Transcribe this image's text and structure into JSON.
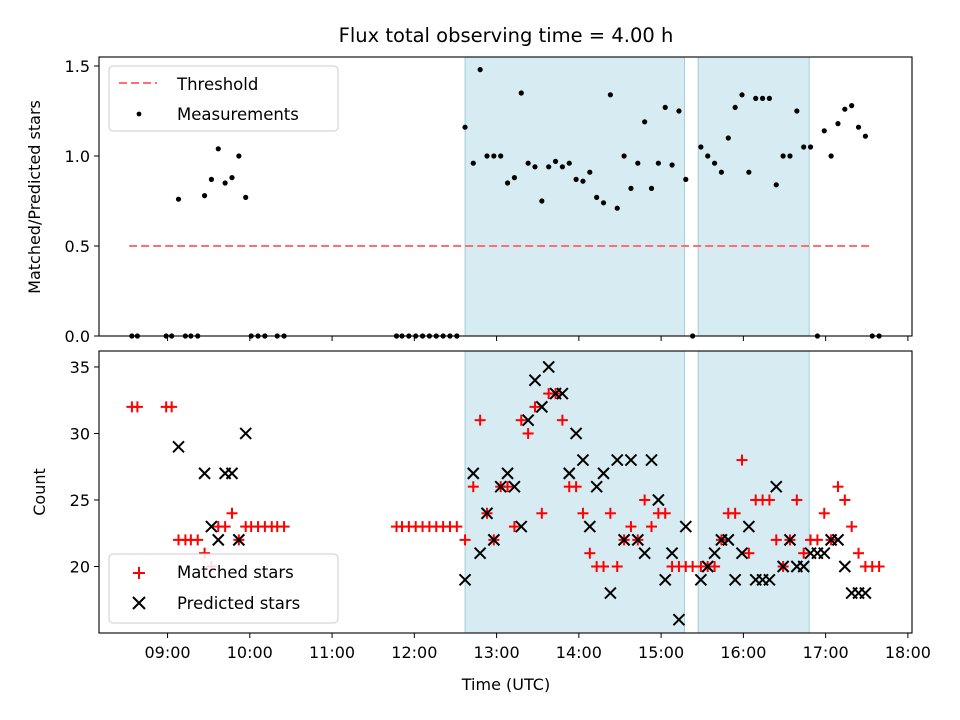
{
  "chart_data": [
    {
      "type": "scatter",
      "title": "Flux total observing time = 4.00 h",
      "ylabel": "Matched/Predicted stars",
      "xlabel": "",
      "xlim": [
        "08:10",
        "18:03"
      ],
      "ylim": [
        0,
        1.55
      ],
      "yticks": [
        "0.0",
        "0.5",
        "1.0",
        "1.5"
      ],
      "legend": {
        "placement": "top-left",
        "entries": [
          "Threshold",
          "Measurements"
        ]
      },
      "threshold": {
        "name": "Threshold",
        "value": 0.5,
        "x_start": "08:32",
        "x_end": "17:32",
        "color": "#ff6f6f"
      },
      "shaded_intervals": [
        [
          "12:37",
          "15:17"
        ],
        [
          "15:27",
          "16:48"
        ]
      ],
      "series": [
        {
          "name": "Measurements",
          "color": "#000000",
          "points": [
            [
              "08:34",
              0
            ],
            [
              "08:38",
              0
            ],
            [
              "08:59",
              0
            ],
            [
              "09:03",
              0
            ],
            [
              "09:13",
              0
            ],
            [
              "09:17",
              0
            ],
            [
              "09:22",
              0
            ],
            [
              "09:08",
              0.76
            ],
            [
              "09:27",
              0.78
            ],
            [
              "09:32",
              0.87
            ],
            [
              "09:37",
              1.04
            ],
            [
              "09:42",
              0.85
            ],
            [
              "09:47",
              0.88
            ],
            [
              "09:52",
              1.0
            ],
            [
              "09:57",
              0.77
            ],
            [
              "10:01",
              0
            ],
            [
              "10:06",
              0
            ],
            [
              "10:11",
              0
            ],
            [
              "10:20",
              0
            ],
            [
              "10:25",
              0
            ],
            [
              "11:47",
              0
            ],
            [
              "11:51",
              0
            ],
            [
              "11:56",
              0
            ],
            [
              "12:01",
              0
            ],
            [
              "12:06",
              0
            ],
            [
              "12:11",
              0
            ],
            [
              "12:16",
              0
            ],
            [
              "12:21",
              0
            ],
            [
              "12:26",
              0
            ],
            [
              "12:31",
              0
            ],
            [
              "12:37",
              1.16
            ],
            [
              "12:43",
              0.96
            ],
            [
              "12:48",
              1.48
            ],
            [
              "12:53",
              1.0
            ],
            [
              "12:58",
              1.0
            ],
            [
              "13:03",
              1.0
            ],
            [
              "13:08",
              0.85
            ],
            [
              "13:13",
              0.88
            ],
            [
              "13:18",
              1.35
            ],
            [
              "13:23",
              0.96
            ],
            [
              "13:28",
              0.94
            ],
            [
              "13:33",
              0.75
            ],
            [
              "13:38",
              0.94
            ],
            [
              "13:43",
              0.97
            ],
            [
              "13:48",
              0.94
            ],
            [
              "13:53",
              0.96
            ],
            [
              "13:58",
              0.87
            ],
            [
              "14:03",
              0.86
            ],
            [
              "14:08",
              0.91
            ],
            [
              "14:13",
              0.77
            ],
            [
              "14:18",
              0.74
            ],
            [
              "14:23",
              1.34
            ],
            [
              "14:28",
              0.71
            ],
            [
              "14:33",
              1.0
            ],
            [
              "14:38",
              0.82
            ],
            [
              "14:43",
              0.96
            ],
            [
              "14:48",
              1.19
            ],
            [
              "14:53",
              0.82
            ],
            [
              "14:58",
              0.96
            ],
            [
              "15:03",
              1.27
            ],
            [
              "15:08",
              0.95
            ],
            [
              "15:13",
              1.25
            ],
            [
              "15:18",
              0.87
            ],
            [
              "15:23",
              0
            ],
            [
              "15:29",
              1.05
            ],
            [
              "15:34",
              1.0
            ],
            [
              "15:39",
              0.96
            ],
            [
              "15:44",
              0.91
            ],
            [
              "15:49",
              1.1
            ],
            [
              "15:54",
              1.27
            ],
            [
              "15:59",
              1.34
            ],
            [
              "16:04",
              0.91
            ],
            [
              "16:09",
              1.32
            ],
            [
              "16:14",
              1.32
            ],
            [
              "16:19",
              1.32
            ],
            [
              "16:24",
              0.84
            ],
            [
              "16:29",
              1.0
            ],
            [
              "16:34",
              1.0
            ],
            [
              "16:39",
              1.25
            ],
            [
              "16:44",
              1.05
            ],
            [
              "16:49",
              1.05
            ],
            [
              "16:54",
              0
            ],
            [
              "16:59",
              1.14
            ],
            [
              "17:04",
              1.0
            ],
            [
              "17:09",
              1.18
            ],
            [
              "17:14",
              1.26
            ],
            [
              "17:19",
              1.28
            ],
            [
              "17:24",
              1.16
            ],
            [
              "17:29",
              1.11
            ],
            [
              "17:34",
              0
            ],
            [
              "17:39",
              0
            ]
          ]
        }
      ]
    },
    {
      "type": "scatter",
      "title": "",
      "ylabel": "Count",
      "xlabel": "Time (UTC)",
      "xlim": [
        "08:10",
        "18:03"
      ],
      "ylim": [
        15,
        36.2
      ],
      "yticks": [
        "20",
        "25",
        "30",
        "35"
      ],
      "xticks": [
        "09:00",
        "10:00",
        "11:00",
        "12:00",
        "13:00",
        "14:00",
        "15:00",
        "16:00",
        "17:00",
        "18:00"
      ],
      "legend": {
        "placement": "bottom-left",
        "entries": [
          "Matched stars",
          "Predicted stars"
        ]
      },
      "shaded_intervals": [
        [
          "12:37",
          "15:17"
        ],
        [
          "15:27",
          "16:48"
        ]
      ],
      "series": [
        {
          "name": "Matched stars",
          "marker": "plus",
          "color": "#ff0000",
          "points": [
            [
              "08:34",
              32
            ],
            [
              "08:38",
              32
            ],
            [
              "08:59",
              32
            ],
            [
              "09:03",
              32
            ],
            [
              "09:08",
              22
            ],
            [
              "09:13",
              22
            ],
            [
              "09:17",
              22
            ],
            [
              "09:22",
              22
            ],
            [
              "09:27",
              21
            ],
            [
              "09:32",
              20
            ],
            [
              "09:37",
              23
            ],
            [
              "09:42",
              23
            ],
            [
              "09:47",
              24
            ],
            [
              "09:52",
              22
            ],
            [
              "09:57",
              23
            ],
            [
              "10:01",
              23
            ],
            [
              "10:06",
              23
            ],
            [
              "10:11",
              23
            ],
            [
              "10:16",
              23
            ],
            [
              "10:20",
              23
            ],
            [
              "10:25",
              23
            ],
            [
              "11:47",
              23
            ],
            [
              "11:51",
              23
            ],
            [
              "11:56",
              23
            ],
            [
              "12:01",
              23
            ],
            [
              "12:06",
              23
            ],
            [
              "12:11",
              23
            ],
            [
              "12:16",
              23
            ],
            [
              "12:21",
              23
            ],
            [
              "12:26",
              23
            ],
            [
              "12:31",
              23
            ],
            [
              "12:37",
              22
            ],
            [
              "12:43",
              26
            ],
            [
              "12:48",
              31
            ],
            [
              "12:53",
              24
            ],
            [
              "12:58",
              22
            ],
            [
              "13:03",
              26
            ],
            [
              "13:08",
              26
            ],
            [
              "13:13",
              23
            ],
            [
              "13:18",
              31
            ],
            [
              "13:23",
              30
            ],
            [
              "13:28",
              32
            ],
            [
              "13:33",
              24
            ],
            [
              "13:38",
              33
            ],
            [
              "13:43",
              33
            ],
            [
              "13:48",
              31
            ],
            [
              "13:53",
              26
            ],
            [
              "13:58",
              26
            ],
            [
              "14:03",
              24
            ],
            [
              "14:08",
              21
            ],
            [
              "14:13",
              20
            ],
            [
              "14:18",
              20
            ],
            [
              "14:23",
              24
            ],
            [
              "14:28",
              20
            ],
            [
              "14:33",
              22
            ],
            [
              "14:38",
              23
            ],
            [
              "14:43",
              22
            ],
            [
              "14:48",
              25
            ],
            [
              "14:53",
              23
            ],
            [
              "14:58",
              24
            ],
            [
              "15:03",
              24
            ],
            [
              "15:08",
              20
            ],
            [
              "15:13",
              20
            ],
            [
              "15:18",
              20
            ],
            [
              "15:23",
              20
            ],
            [
              "15:29",
              20
            ],
            [
              "15:34",
              20
            ],
            [
              "15:39",
              20
            ],
            [
              "15:44",
              22
            ],
            [
              "15:49",
              24
            ],
            [
              "15:54",
              24
            ],
            [
              "15:59",
              28
            ],
            [
              "16:04",
              21
            ],
            [
              "16:09",
              25
            ],
            [
              "16:14",
              25
            ],
            [
              "16:19",
              25
            ],
            [
              "16:24",
              22
            ],
            [
              "16:29",
              20
            ],
            [
              "16:34",
              22
            ],
            [
              "16:39",
              25
            ],
            [
              "16:44",
              21
            ],
            [
              "16:49",
              22
            ],
            [
              "16:54",
              22
            ],
            [
              "16:59",
              24
            ],
            [
              "17:04",
              22
            ],
            [
              "17:09",
              26
            ],
            [
              "17:14",
              25
            ],
            [
              "17:19",
              23
            ],
            [
              "17:24",
              21
            ],
            [
              "17:29",
              20
            ],
            [
              "17:34",
              20
            ],
            [
              "17:39",
              20
            ]
          ]
        },
        {
          "name": "Predicted stars",
          "marker": "x",
          "color": "#000000",
          "points": [
            [
              "09:08",
              29
            ],
            [
              "09:27",
              27
            ],
            [
              "09:32",
              23
            ],
            [
              "09:37",
              22
            ],
            [
              "09:42",
              27
            ],
            [
              "09:47",
              27
            ],
            [
              "09:52",
              22
            ],
            [
              "09:57",
              30
            ],
            [
              "12:37",
              19
            ],
            [
              "12:43",
              27
            ],
            [
              "12:48",
              21
            ],
            [
              "12:53",
              24
            ],
            [
              "12:58",
              22
            ],
            [
              "13:03",
              26
            ],
            [
              "13:08",
              27
            ],
            [
              "13:13",
              26
            ],
            [
              "13:18",
              23
            ],
            [
              "13:23",
              31
            ],
            [
              "13:28",
              34
            ],
            [
              "13:33",
              32
            ],
            [
              "13:38",
              35
            ],
            [
              "13:43",
              33
            ],
            [
              "13:48",
              33
            ],
            [
              "13:53",
              27
            ],
            [
              "13:58",
              30
            ],
            [
              "14:03",
              28
            ],
            [
              "14:08",
              23
            ],
            [
              "14:13",
              26
            ],
            [
              "14:18",
              27
            ],
            [
              "14:23",
              18
            ],
            [
              "14:28",
              28
            ],
            [
              "14:33",
              22
            ],
            [
              "14:38",
              28
            ],
            [
              "14:43",
              22
            ],
            [
              "14:48",
              21
            ],
            [
              "14:53",
              28
            ],
            [
              "14:58",
              25
            ],
            [
              "15:03",
              19
            ],
            [
              "15:08",
              21
            ],
            [
              "15:13",
              16
            ],
            [
              "15:18",
              23
            ],
            [
              "15:29",
              19
            ],
            [
              "15:34",
              20
            ],
            [
              "15:39",
              21
            ],
            [
              "15:44",
              22
            ],
            [
              "15:49",
              22
            ],
            [
              "15:54",
              19
            ],
            [
              "15:59",
              21
            ],
            [
              "16:04",
              23
            ],
            [
              "16:09",
              19
            ],
            [
              "16:14",
              19
            ],
            [
              "16:19",
              19
            ],
            [
              "16:24",
              26
            ],
            [
              "16:29",
              20
            ],
            [
              "16:34",
              22
            ],
            [
              "16:39",
              20
            ],
            [
              "16:44",
              20
            ],
            [
              "16:49",
              21
            ],
            [
              "16:54",
              21
            ],
            [
              "16:59",
              21
            ],
            [
              "17:04",
              22
            ],
            [
              "17:09",
              22
            ],
            [
              "17:14",
              20
            ],
            [
              "17:19",
              18
            ],
            [
              "17:24",
              18
            ],
            [
              "17:29",
              18
            ]
          ]
        }
      ]
    }
  ]
}
